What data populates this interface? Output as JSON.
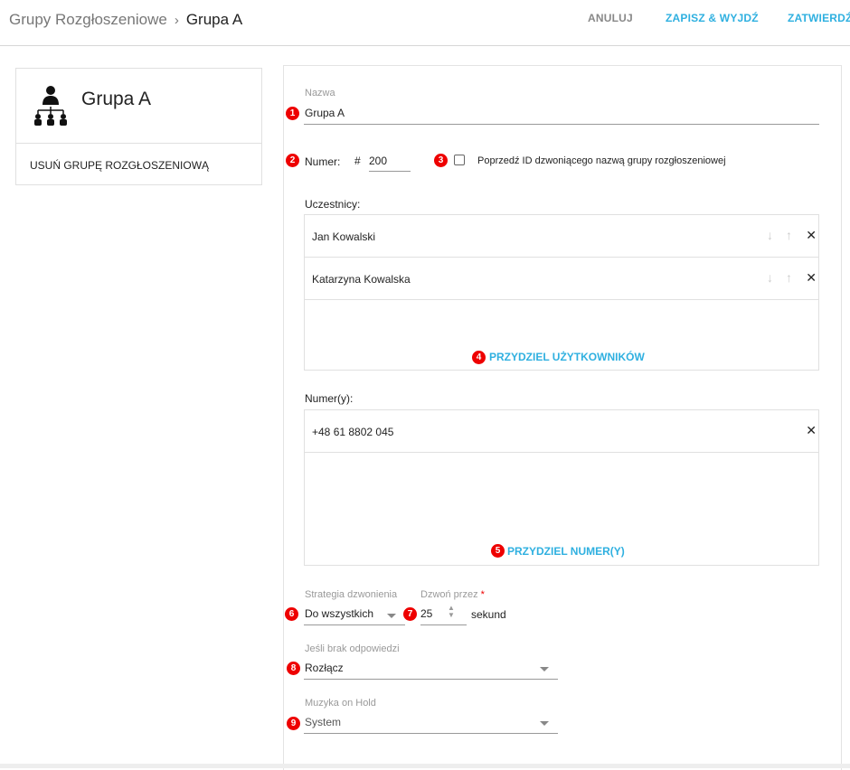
{
  "header": {
    "breadcrumb_parent": "Grupy Rozgłoszeniowe",
    "breadcrumb_current": "Grupa A",
    "cancel": "ANULUJ",
    "save_exit": "ZAPISZ & WYJDŹ",
    "confirm": "ZATWIERDŹ"
  },
  "card": {
    "title": "Grupa A",
    "delete": "USUŃ GRUPĘ ROZGŁOSZENIOWĄ",
    "icon": "group-hierarchy-icon"
  },
  "form": {
    "name_label": "Nazwa",
    "name_value": "Grupa A",
    "number_label": "Numer:",
    "number_prefix": "#",
    "number_value": "200",
    "prefix_checkbox_label": "Poprzedź ID dzwoniącego nazwą grupy rozgłoszeniowej",
    "prefix_checked": false,
    "participants_label": "Uczestnicy:",
    "participants": [
      {
        "name": "Jan Kowalski"
      },
      {
        "name": "Katarzyna Kowalska"
      }
    ],
    "assign_users": "PRZYDZIEL UŻYTKOWNIKÓW",
    "numbers_label": "Numer(y):",
    "numbers": [
      {
        "value": "+48 61 8802 045"
      }
    ],
    "assign_numbers": "PRZYDZIEL NUMER(Y)",
    "strategy_label": "Strategia dzwonienia",
    "strategy_value": "Do wszystkich",
    "ring_label": "Dzwoń przez",
    "ring_required": "*",
    "ring_value": "25",
    "ring_unit": "sekund",
    "no_answer_label": "Jeśli brak odpowiedzi",
    "no_answer_value": "Rozłącz",
    "moh_label": "Muzyka on Hold",
    "moh_value": "System"
  },
  "badges": [
    "1",
    "2",
    "3",
    "4",
    "5",
    "6",
    "7",
    "8",
    "9"
  ],
  "colors": {
    "accent": "#2fb0e0",
    "badge": "#e00000"
  }
}
